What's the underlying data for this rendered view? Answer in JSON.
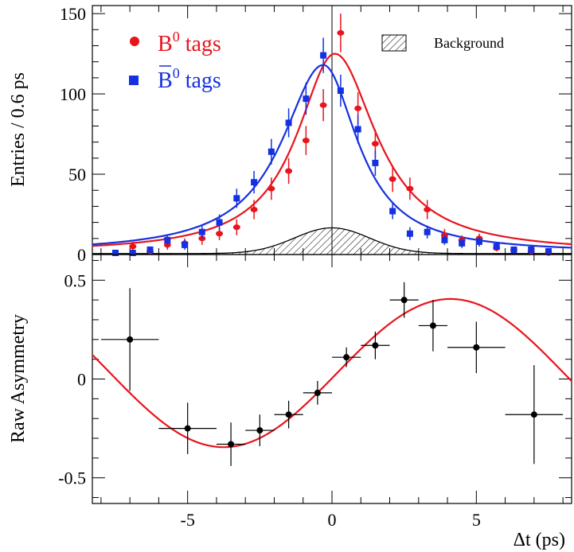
{
  "chart_data": [
    {
      "type": "scatter",
      "ylabel": "Entries / 0.6 ps",
      "xlim": [
        -8.3,
        8.3
      ],
      "ylim": [
        0,
        155
      ],
      "yticks": [
        "0",
        "50",
        "100",
        "150"
      ],
      "legend": {
        "placement": "top-left",
        "b0_prefix": "B",
        "b0_sup": "0",
        "b0_suffix": " tags",
        "b0bar_prefix": "B",
        "b0bar_sup": "0",
        "b0bar_suffix": " tags",
        "background": "Background"
      },
      "series": [
        {
          "color": "#e8141c",
          "marker": "circle",
          "x": [
            -6.9,
            -6.3,
            -5.7,
            -5.1,
            -4.5,
            -3.9,
            -3.3,
            -2.7,
            -2.1,
            -1.5,
            -0.9,
            -0.3,
            0.3,
            0.9,
            1.5,
            2.1,
            2.7,
            3.3,
            3.9,
            4.5,
            5.1,
            5.7,
            6.3,
            6.9,
            7.5
          ],
          "y": [
            5,
            2,
            6,
            7,
            10,
            13,
            17,
            28,
            41,
            52,
            71,
            93,
            138,
            91,
            69,
            47,
            41,
            28,
            12,
            9,
            10,
            4,
            3,
            2,
            1
          ],
          "err": [
            3,
            2,
            3,
            3,
            4,
            4,
            5,
            6,
            7,
            8,
            9,
            10,
            12,
            10,
            9,
            8,
            7,
            6,
            4,
            3,
            3,
            2,
            2,
            2,
            1
          ]
        },
        {
          "color": "#1530e0",
          "marker": "square",
          "x": [
            -7.5,
            -6.9,
            -6.3,
            -5.7,
            -5.1,
            -4.5,
            -3.9,
            -3.3,
            -2.7,
            -2.1,
            -1.5,
            -0.9,
            -0.3,
            0.3,
            0.9,
            1.5,
            2.1,
            2.7,
            3.3,
            3.9,
            4.5,
            5.1,
            5.7,
            6.3,
            6.9,
            7.5
          ],
          "y": [
            1,
            1,
            3,
            9,
            6,
            14,
            20,
            35,
            45,
            64,
            82,
            97,
            124,
            102,
            78,
            57,
            27,
            13,
            14,
            9,
            7,
            8,
            5,
            3,
            3,
            2
          ],
          "err": [
            1,
            1,
            2,
            3,
            3,
            4,
            5,
            6,
            7,
            8,
            9,
            10,
            11,
            10,
            9,
            8,
            5,
            4,
            4,
            3,
            3,
            3,
            2,
            2,
            2,
            1
          ]
        }
      ],
      "fits": [
        {
          "color": "#e8141c",
          "peak": 124,
          "center": 0.1,
          "width_left": 1.6,
          "width_right": 1.75
        },
        {
          "color": "#1530e0",
          "peak": 117,
          "center": -0.3,
          "width_left": 1.75,
          "width_right": 1.45
        }
      ],
      "background": {
        "peak": 16,
        "center": 0,
        "width_left": 1.3,
        "width_right": 1.3
      }
    },
    {
      "type": "scatter",
      "xlabel": "Δt (ps)",
      "ylabel": "Raw Asymmetry",
      "xlim": [
        -8.3,
        8.3
      ],
      "ylim": [
        -0.63,
        0.63
      ],
      "xticks": [
        "-5",
        "0",
        "5"
      ],
      "yticks": [
        "-0.5",
        "0",
        "0.5"
      ],
      "points": {
        "color": "#000000",
        "x": [
          -7.0,
          -5.0,
          -3.5,
          -2.5,
          -1.5,
          -0.5,
          0.5,
          1.5,
          2.5,
          3.5,
          5.0,
          7.0
        ],
        "y": [
          0.2,
          -0.25,
          -0.33,
          -0.26,
          -0.18,
          -0.07,
          0.11,
          0.17,
          0.4,
          0.27,
          0.16,
          -0.18
        ],
        "xerr": [
          1.0,
          1.0,
          0.5,
          0.5,
          0.5,
          0.5,
          0.5,
          0.5,
          0.5,
          0.5,
          1.0,
          1.0
        ],
        "yerr": [
          0.26,
          0.13,
          0.11,
          0.08,
          0.07,
          0.06,
          0.05,
          0.07,
          0.09,
          0.13,
          0.13,
          0.25
        ]
      },
      "fit": {
        "color": "#e8141c",
        "amplitude": 0.375,
        "frequency": 0.4,
        "phase": -0.07
      }
    }
  ]
}
